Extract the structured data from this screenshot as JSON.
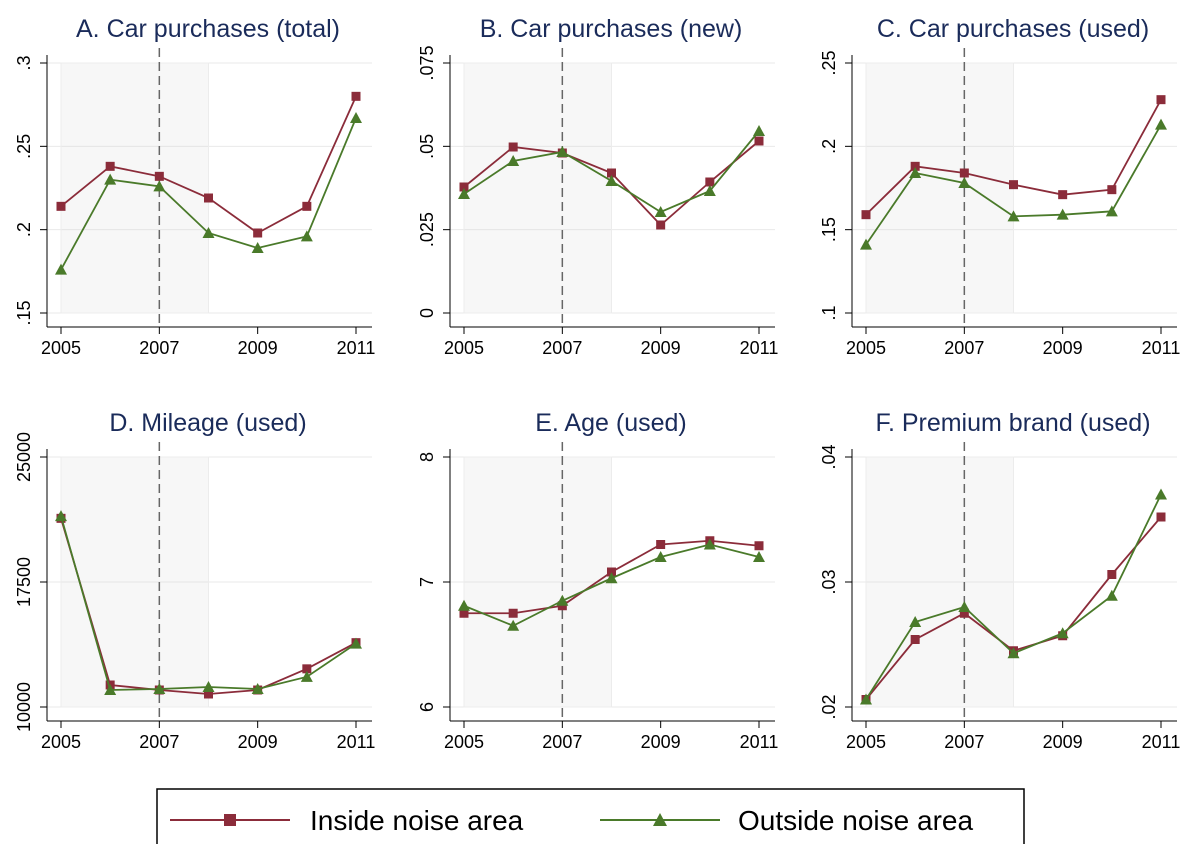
{
  "chart_data": [
    {
      "type": "line",
      "title": "A. Car purchases (total)",
      "x": [
        2005,
        2006,
        2007,
        2008,
        2009,
        2010,
        2011
      ],
      "series": [
        {
          "name": "Inside noise area",
          "color": "#8b2c3a",
          "marker": "square",
          "values": [
            0.214,
            0.238,
            0.232,
            0.219,
            0.198,
            0.214,
            0.28
          ]
        },
        {
          "name": "Outside noise area",
          "color": "#4a7a2a",
          "marker": "triangle",
          "values": [
            0.176,
            0.23,
            0.226,
            0.198,
            0.189,
            0.196,
            0.267
          ]
        }
      ],
      "xlim": [
        2005,
        2011
      ],
      "xticks": [
        2005,
        2007,
        2009,
        2011
      ],
      "ylim": [
        0.15,
        0.3
      ],
      "yticks": [
        {
          "value": 0.15,
          "label": ".15"
        },
        {
          "value": 0.2,
          "label": ".2"
        },
        {
          "value": 0.25,
          "label": ".25"
        },
        {
          "value": 0.3,
          "label": ".3"
        }
      ],
      "shaded_period": [
        2005,
        2008
      ],
      "reference_line": 2007,
      "grid": true
    },
    {
      "type": "line",
      "title": "B. Car purchases (new)",
      "x": [
        2005,
        2006,
        2007,
        2008,
        2009,
        2010,
        2011
      ],
      "series": [
        {
          "color": "#8b2c3a",
          "marker": "square",
          "values": [
            0.0378,
            0.0498,
            0.048,
            0.042,
            0.0264,
            0.0393,
            0.0516
          ]
        },
        {
          "color": "#4a7a2a",
          "marker": "triangle",
          "values": [
            0.0357,
            0.0456,
            0.0483,
            0.0396,
            0.0303,
            0.0366,
            0.0546
          ]
        }
      ],
      "xlim": [
        2005,
        2011
      ],
      "xticks": [
        2005,
        2007,
        2009,
        2011
      ],
      "ylim": [
        0,
        0.075
      ],
      "yticks": [
        0,
        {
          "value": 0.025,
          "label": ".025"
        },
        {
          "value": 0.05,
          "label": ".05"
        },
        {
          "value": 0.075,
          "label": ".075"
        }
      ],
      "shaded_period": [
        2005,
        2008
      ],
      "reference_line": 2007,
      "grid": true
    },
    {
      "type": "line",
      "title": "C. Car purchases (used)",
      "x": [
        2005,
        2006,
        2007,
        2008,
        2009,
        2010,
        2011
      ],
      "series": [
        {
          "color": "#8b2c3a",
          "marker": "square",
          "values": [
            0.159,
            0.188,
            0.184,
            0.177,
            0.171,
            0.174,
            0.228
          ]
        },
        {
          "color": "#4a7a2a",
          "marker": "triangle",
          "values": [
            0.141,
            0.184,
            0.178,
            0.158,
            0.159,
            0.161,
            0.213
          ]
        }
      ],
      "xlim": [
        2005,
        2011
      ],
      "xticks": [
        2005,
        2007,
        2009,
        2011
      ],
      "ylim": [
        0.1,
        0.25
      ],
      "yticks": [
        {
          "value": 0.1,
          "label": ".1"
        },
        {
          "value": 0.15,
          "label": ".15"
        },
        {
          "value": 0.2,
          "label": ".2"
        },
        {
          "value": 0.25,
          "label": ".25"
        }
      ],
      "shaded_period": [
        2005,
        2008
      ],
      "reference_line": 2007,
      "grid": true
    },
    {
      "type": "line",
      "title": "D. Mileage (used)",
      "x": [
        2005,
        2006,
        2007,
        2008,
        2009,
        2010,
        2011
      ],
      "series": [
        {
          "color": "#8b2c3a",
          "marker": "square",
          "values": [
            21320,
            11320,
            11020,
            10780,
            11020,
            12290,
            13860
          ]
        },
        {
          "color": "#4a7a2a",
          "marker": "triangle",
          "values": [
            21450,
            11020,
            11080,
            11200,
            11080,
            11810,
            13800
          ]
        }
      ],
      "xlim": [
        2005,
        2011
      ],
      "xticks": [
        2005,
        2007,
        2009,
        2011
      ],
      "ylim": [
        10000,
        25000
      ],
      "yticks": [
        10000,
        17500,
        25000
      ],
      "shaded_period": [
        2005,
        2008
      ],
      "reference_line": 2007,
      "grid": true
    },
    {
      "type": "line",
      "title": "E. Age (used)",
      "x": [
        2005,
        2006,
        2007,
        2008,
        2009,
        2010,
        2011
      ],
      "series": [
        {
          "color": "#8b2c3a",
          "marker": "square",
          "values": [
            6.75,
            6.75,
            6.81,
            7.08,
            7.3,
            7.33,
            7.29
          ]
        },
        {
          "color": "#4a7a2a",
          "marker": "triangle",
          "values": [
            6.81,
            6.65,
            6.85,
            7.03,
            7.2,
            7.3,
            7.2
          ]
        }
      ],
      "xlim": [
        2005,
        2011
      ],
      "xticks": [
        2005,
        2007,
        2009,
        2011
      ],
      "ylim": [
        6,
        8
      ],
      "yticks": [
        6,
        7,
        8
      ],
      "shaded_period": [
        2005,
        2008
      ],
      "reference_line": 2007,
      "grid": true
    },
    {
      "type": "line",
      "title": "F. Premium brand (used)",
      "x": [
        2005,
        2006,
        2007,
        2008,
        2009,
        2010,
        2011
      ],
      "series": [
        {
          "color": "#8b2c3a",
          "marker": "square",
          "values": [
            0.0206,
            0.0254,
            0.0275,
            0.0245,
            0.0257,
            0.0306,
            0.0352
          ]
        },
        {
          "color": "#4a7a2a",
          "marker": "triangle",
          "values": [
            0.0206,
            0.0268,
            0.028,
            0.0243,
            0.0259,
            0.0289,
            0.037
          ]
        }
      ],
      "xlim": [
        2005,
        2011
      ],
      "xticks": [
        2005,
        2007,
        2009,
        2011
      ],
      "ylim": [
        0.02,
        0.04
      ],
      "yticks": [
        {
          "value": 0.02,
          "label": ".02"
        },
        {
          "value": 0.03,
          "label": ".03"
        },
        {
          "value": 0.04,
          "label": ".04"
        }
      ],
      "shaded_period": [
        2005,
        2008
      ],
      "reference_line": 2007,
      "grid": true
    }
  ]
}
